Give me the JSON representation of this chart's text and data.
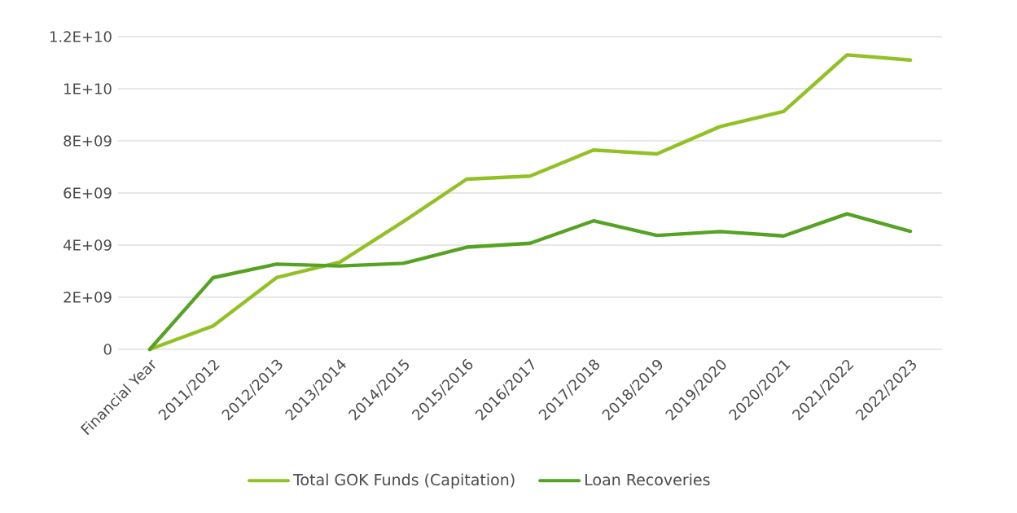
{
  "chart_data": {
    "type": "line",
    "categories": [
      "Financial Year",
      "2011/2012",
      "2012/2013",
      "2013/2014",
      "2014/2015",
      "2015/2016",
      "2016/2017",
      "2017/2018",
      "2018/2019",
      "2019/2020",
      "2020/2021",
      "2021/2022",
      "2022/2023"
    ],
    "series": [
      {
        "name": "Total GOK Funds (Capitation)",
        "color": "#92c126",
        "values": [
          0,
          900000000,
          2750000000,
          3350000000,
          4900000000,
          6530000000,
          6650000000,
          7650000000,
          7500000000,
          8550000000,
          9130000000,
          11300000000,
          11100000000
        ]
      },
      {
        "name": "Loan Recoveries",
        "color": "#56a324",
        "values": [
          0,
          2750000000,
          3270000000,
          3200000000,
          3300000000,
          3920000000,
          4070000000,
          4930000000,
          4370000000,
          4520000000,
          4350000000,
          5200000000,
          4530000000
        ]
      }
    ],
    "ylim": [
      0,
      12000000000
    ],
    "yticks": [
      0,
      {
        "value": 2000000000,
        "label": "2E+09"
      },
      {
        "value": 4000000000,
        "label": "4E+09"
      },
      {
        "value": 6000000000,
        "label": "6E+09"
      },
      {
        "value": 8000000000,
        "label": "8E+09"
      },
      {
        "value": 10000000000,
        "label": "1E+10"
      },
      {
        "value": 12000000000,
        "label": "1.2E+10"
      }
    ],
    "grid": "y",
    "legend": "bottom",
    "marker": "none",
    "line_style": "solid"
  }
}
